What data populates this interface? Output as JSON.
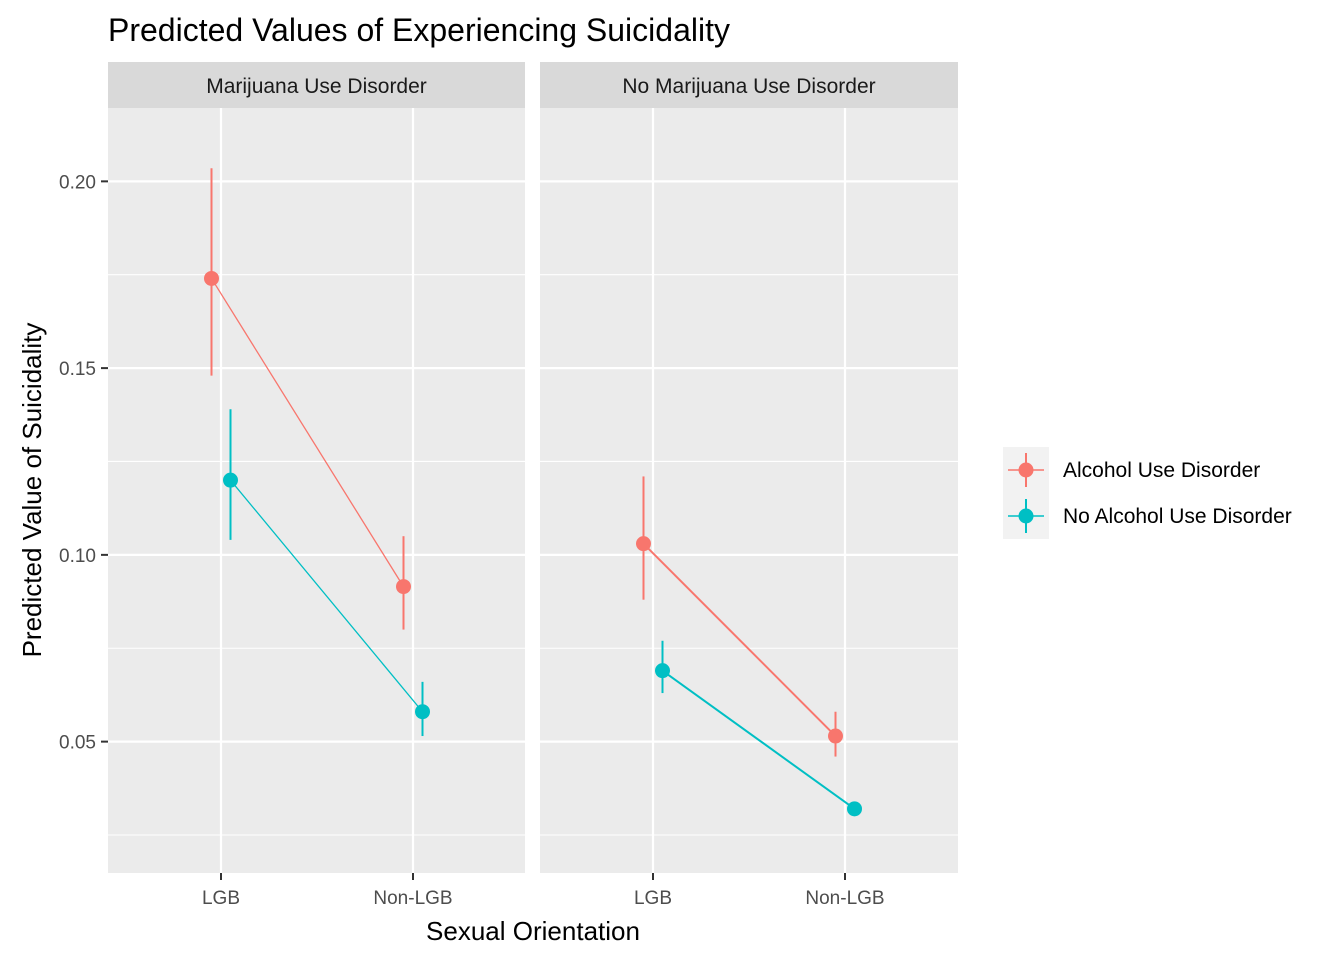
{
  "chart_data": {
    "type": "line",
    "title": "Predicted Values of Experiencing Suicidality",
    "xlabel": "Sexual Orientation",
    "ylabel": "Predicted Value of Suicidality",
    "categories": [
      "LGB",
      "Non-LGB"
    ],
    "yticks": [
      "0.05",
      "0.10",
      "0.15",
      "0.20"
    ],
    "ylim": [
      0.025,
      0.21
    ],
    "grid": true,
    "legend_position": "right",
    "facets": [
      {
        "name": "Marijuana Use Disorder",
        "series": [
          {
            "name": "Alcohol Use Disorder",
            "color": "#F8766D",
            "values": [
              0.174,
              0.0915
            ],
            "lower": [
              0.148,
              0.08
            ],
            "upper": [
              0.2035,
              0.105
            ]
          },
          {
            "name": "No Alcohol Use Disorder",
            "color": "#00BFC4",
            "values": [
              0.12,
              0.058
            ],
            "lower": [
              0.104,
              0.0515
            ],
            "upper": [
              0.139,
              0.066
            ]
          }
        ]
      },
      {
        "name": "No Marijuana Use Disorder",
        "series": [
          {
            "name": "Alcohol Use Disorder",
            "color": "#F8766D",
            "values": [
              0.103,
              0.0515
            ],
            "lower": [
              0.088,
              0.046
            ],
            "upper": [
              0.121,
              0.058
            ]
          },
          {
            "name": "No Alcohol Use Disorder",
            "color": "#00BFC4",
            "values": [
              0.069,
              0.032
            ],
            "lower": [
              0.063,
              0.0305
            ],
            "upper": [
              0.077,
              0.0335
            ]
          }
        ]
      }
    ]
  }
}
